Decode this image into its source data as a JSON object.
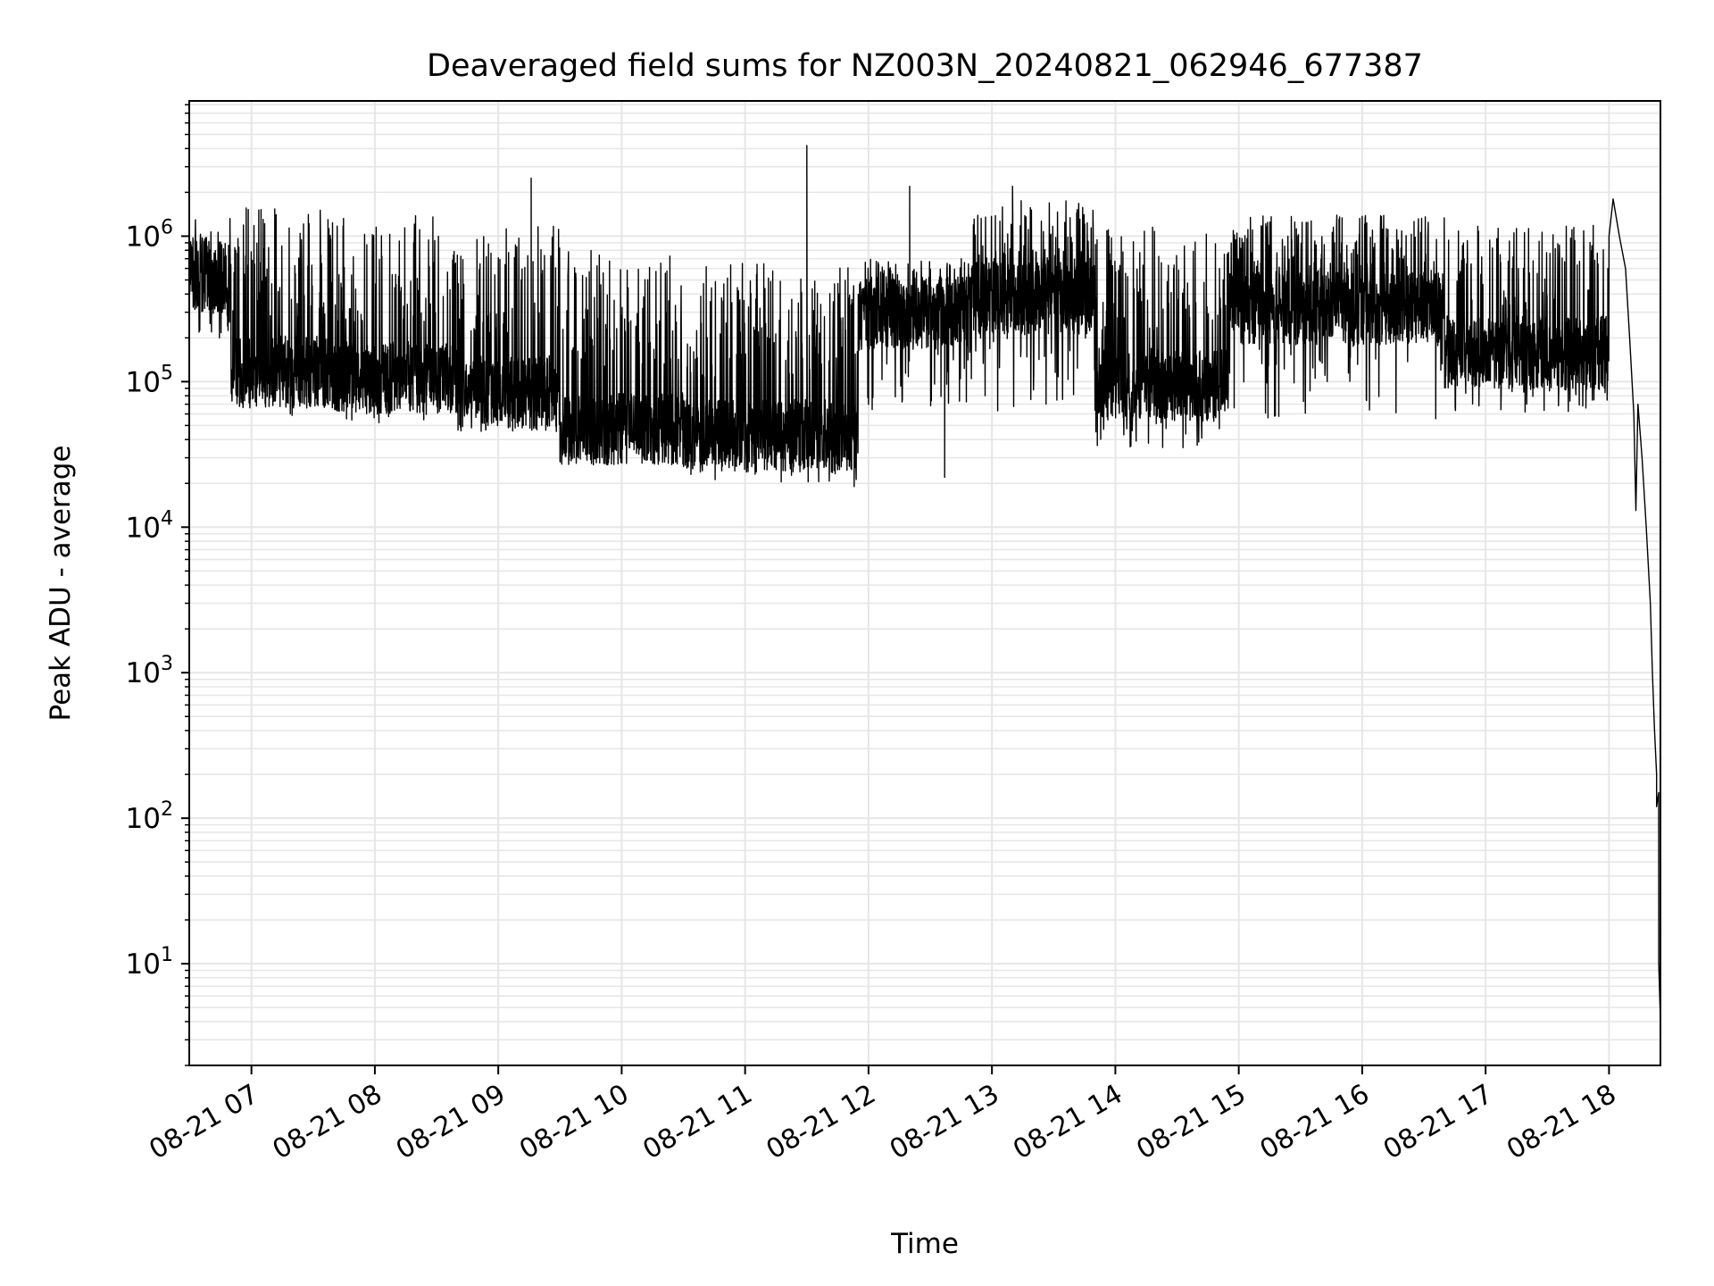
{
  "chart_data": {
    "type": "line",
    "title": "Deaveraged field sums for NZ003N_20240821_062946_677387",
    "xlabel": "Time",
    "ylabel": "Peak ADU - average",
    "yscale": "log",
    "ylim": [
      2,
      8500000
    ],
    "xlim": [
      "08-21 06:29:46",
      "08-21 18:25:00"
    ],
    "grid": true,
    "line_color": "#000000",
    "grid_color": "#e6e6e6",
    "x_ticks": [
      {
        "label": "08-21 07",
        "time": "08-21 07:00"
      },
      {
        "label": "08-21 08",
        "time": "08-21 08:00"
      },
      {
        "label": "08-21 09",
        "time": "08-21 09:00"
      },
      {
        "label": "08-21 10",
        "time": "08-21 10:00"
      },
      {
        "label": "08-21 11",
        "time": "08-21 11:00"
      },
      {
        "label": "08-21 12",
        "time": "08-21 12:00"
      },
      {
        "label": "08-21 13",
        "time": "08-21 13:00"
      },
      {
        "label": "08-21 14",
        "time": "08-21 14:00"
      },
      {
        "label": "08-21 15",
        "time": "08-21 15:00"
      },
      {
        "label": "08-21 16",
        "time": "08-21 16:00"
      },
      {
        "label": "08-21 17",
        "time": "08-21 17:00"
      },
      {
        "label": "08-21 18",
        "time": "08-21 18:00"
      }
    ],
    "y_ticks": [
      {
        "base": "10",
        "exp": "1",
        "value": 10
      },
      {
        "base": "10",
        "exp": "2",
        "value": 100
      },
      {
        "base": "10",
        "exp": "3",
        "value": 1000
      },
      {
        "base": "10",
        "exp": "4",
        "value": 10000
      },
      {
        "base": "10",
        "exp": "5",
        "value": 100000
      },
      {
        "base": "10",
        "exp": "6",
        "value": 1000000
      }
    ],
    "segments": [
      {
        "start": "06:29",
        "end": "06:50",
        "base": 500000,
        "peak": 1400000,
        "trough": 200000
      },
      {
        "start": "06:50",
        "end": "07:40",
        "base": 110000,
        "peak": 1600000,
        "trough": 55000
      },
      {
        "start": "07:40",
        "end": "08:40",
        "base": 100000,
        "peak": 1400000,
        "trough": 50000
      },
      {
        "start": "08:40",
        "end": "09:30",
        "base": 80000,
        "peak": 1200000,
        "trough": 45000
      },
      {
        "start": "09:30",
        "end": "10:30",
        "base": 45000,
        "peak": 800000,
        "trough": 28000
      },
      {
        "start": "10:30",
        "end": "11:55",
        "base": 40000,
        "peak": 650000,
        "trough": 20000
      },
      {
        "start": "11:55",
        "end": "12:50",
        "base": 280000,
        "peak": 700000,
        "trough": 60000
      },
      {
        "start": "12:50",
        "end": "13:50",
        "base": 350000,
        "peak": 1800000,
        "trough": 60000
      },
      {
        "start": "13:50",
        "end": "14:55",
        "base": 90000,
        "peak": 1200000,
        "trough": 35000
      },
      {
        "start": "14:55",
        "end": "16:40",
        "base": 300000,
        "peak": 1400000,
        "trough": 55000
      },
      {
        "start": "16:40",
        "end": "18:00",
        "base": 150000,
        "peak": 1200000,
        "trough": 60000
      }
    ],
    "spikes": [
      {
        "time": "09:16",
        "value": 2500000
      },
      {
        "time": "11:30",
        "value": 4200000
      },
      {
        "time": "12:20",
        "value": 2200000
      },
      {
        "time": "13:10",
        "value": 2200000
      },
      {
        "time": "12:37",
        "value": 22000
      },
      {
        "time": "11:53",
        "value": 19000
      }
    ],
    "tail": [
      {
        "time": "18:00",
        "value": 1000000
      },
      {
        "time": "18:02",
        "value": 1800000
      },
      {
        "time": "18:05",
        "value": 1000000
      },
      {
        "time": "18:08",
        "value": 600000
      },
      {
        "time": "18:10",
        "value": 200000
      },
      {
        "time": "18:12",
        "value": 60000
      },
      {
        "time": "18:13",
        "value": 13000
      },
      {
        "time": "18:14",
        "value": 70000
      },
      {
        "time": "18:16",
        "value": 30000
      },
      {
        "time": "18:18",
        "value": 10000
      },
      {
        "time": "18:20",
        "value": 3000
      },
      {
        "time": "18:21",
        "value": 1000
      },
      {
        "time": "18:22",
        "value": 400
      },
      {
        "time": "18:23",
        "value": 200
      },
      {
        "time": "18:23",
        "value": 120
      },
      {
        "time": "18:24",
        "value": 150
      },
      {
        "time": "18:24",
        "value": 10
      },
      {
        "time": "18:25",
        "value": 4
      }
    ]
  }
}
